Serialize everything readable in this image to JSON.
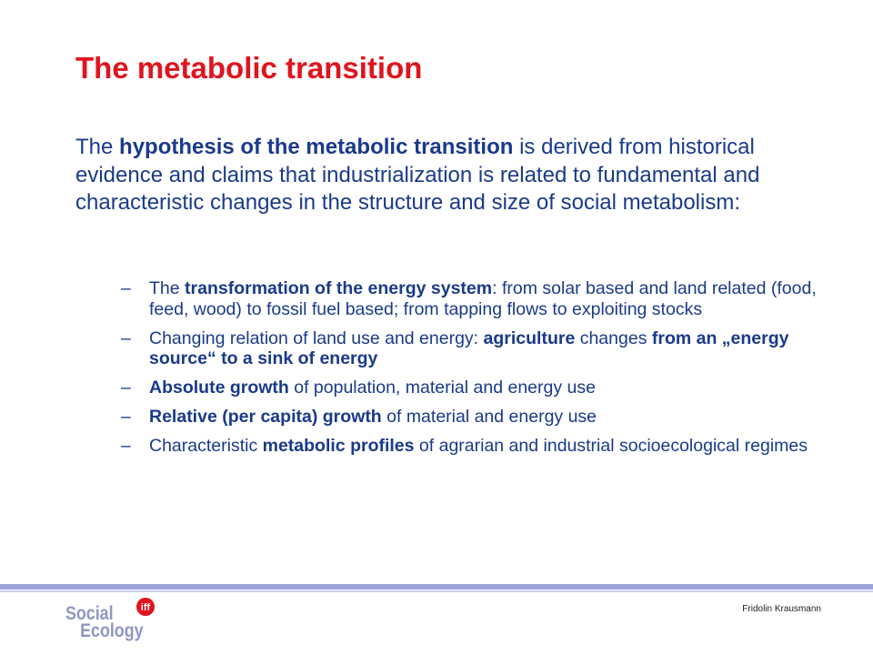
{
  "slide": {
    "title": "The metabolic transition",
    "intro": [
      {
        "text": "The ",
        "bold": false
      },
      {
        "text": "hypothesis of the metabolic transition",
        "bold": true
      },
      {
        "text": " is derived from historical evidence and claims that industrialization is related to fundamental and characteristic changes in the structure and size of social metabolism:",
        "bold": false
      }
    ],
    "bullet_marker": "–",
    "bullets": [
      [
        {
          "text": "The ",
          "bold": false
        },
        {
          "text": "transformation of the energy system",
          "bold": true
        },
        {
          "text": ": from solar based and land related (food, feed, wood) to fossil fuel based; from tapping flows to exploiting stocks",
          "bold": false
        }
      ],
      [
        {
          "text": "Changing relation of land use and energy: ",
          "bold": false
        },
        {
          "text": "agriculture",
          "bold": true
        },
        {
          "text": " changes ",
          "bold": false
        },
        {
          "text": "from an „energy source“ to a sink of energy",
          "bold": true
        }
      ],
      [
        {
          "text": "Absolute growth",
          "bold": true
        },
        {
          "text": " of population, material and energy use",
          "bold": false
        }
      ],
      [
        {
          "text": "Relative (per capita) growth",
          "bold": true
        },
        {
          "text": " of material and energy use",
          "bold": false
        }
      ],
      [
        {
          "text": "Characteristic ",
          "bold": false
        },
        {
          "text": "metabolic profiles",
          "bold": true
        },
        {
          "text": " of agrarian and industrial socioecological regimes",
          "bold": false
        }
      ]
    ]
  },
  "footer": {
    "logo_word1": "Social",
    "logo_word2": "Ecology",
    "logo_badge": "iff",
    "author": "Fridolin Krausmann"
  },
  "colors": {
    "title": "#e0141e",
    "body_text": "#1a3a8a",
    "footer_rule": "#9ba3d8",
    "logo_text": "#8f96c4",
    "logo_badge": "#e0141e"
  }
}
